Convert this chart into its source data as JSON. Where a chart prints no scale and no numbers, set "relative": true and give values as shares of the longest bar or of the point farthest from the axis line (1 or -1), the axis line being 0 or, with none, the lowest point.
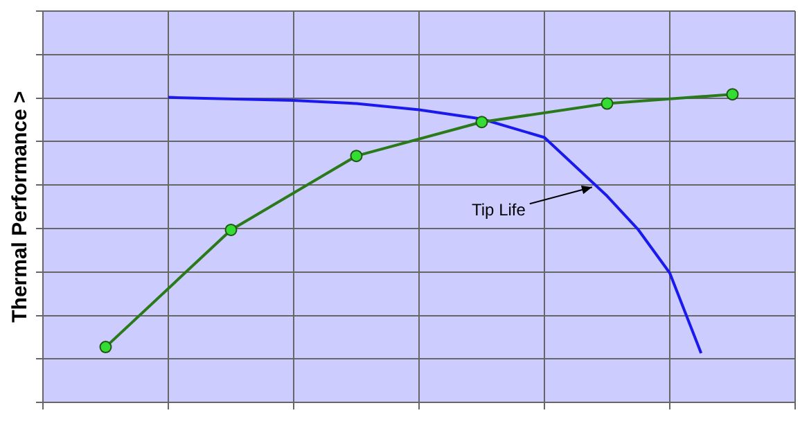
{
  "chart_data": {
    "type": "line",
    "ylabel": "Thermal Performance >",
    "relative": true,
    "grid": true,
    "legend": false,
    "marker": "circle",
    "line_style": "solid",
    "categories": [
      null,
      null,
      null,
      null,
      null,
      null,
      null,
      null,
      null,
      null,
      null,
      null,
      null,
      null,
      null,
      null,
      null,
      null,
      null,
      null,
      null,
      null,
      null,
      null,
      null
    ],
    "series": [
      {
        "color": "#2a7a1a",
        "values": [
          null,
          null,
          0.18,
          null,
          null,
          null,
          0.56,
          null,
          null,
          null,
          0.8,
          null,
          null,
          null,
          0.91,
          null,
          null,
          null,
          0.97,
          null,
          null,
          null,
          1,
          null,
          null
        ]
      },
      {
        "color": "#1a1aee",
        "marker": "none",
        "values": [
          null,
          null,
          null,
          null,
          0.99,
          null,
          null,
          null,
          0.98,
          null,
          0.97,
          null,
          0.95,
          null,
          0.92,
          null,
          0.86,
          null,
          0.67,
          0.56,
          0.42,
          0.16,
          null,
          null,
          null
        ]
      }
    ],
    "annotations": [
      "Tip Life"
    ]
  }
}
